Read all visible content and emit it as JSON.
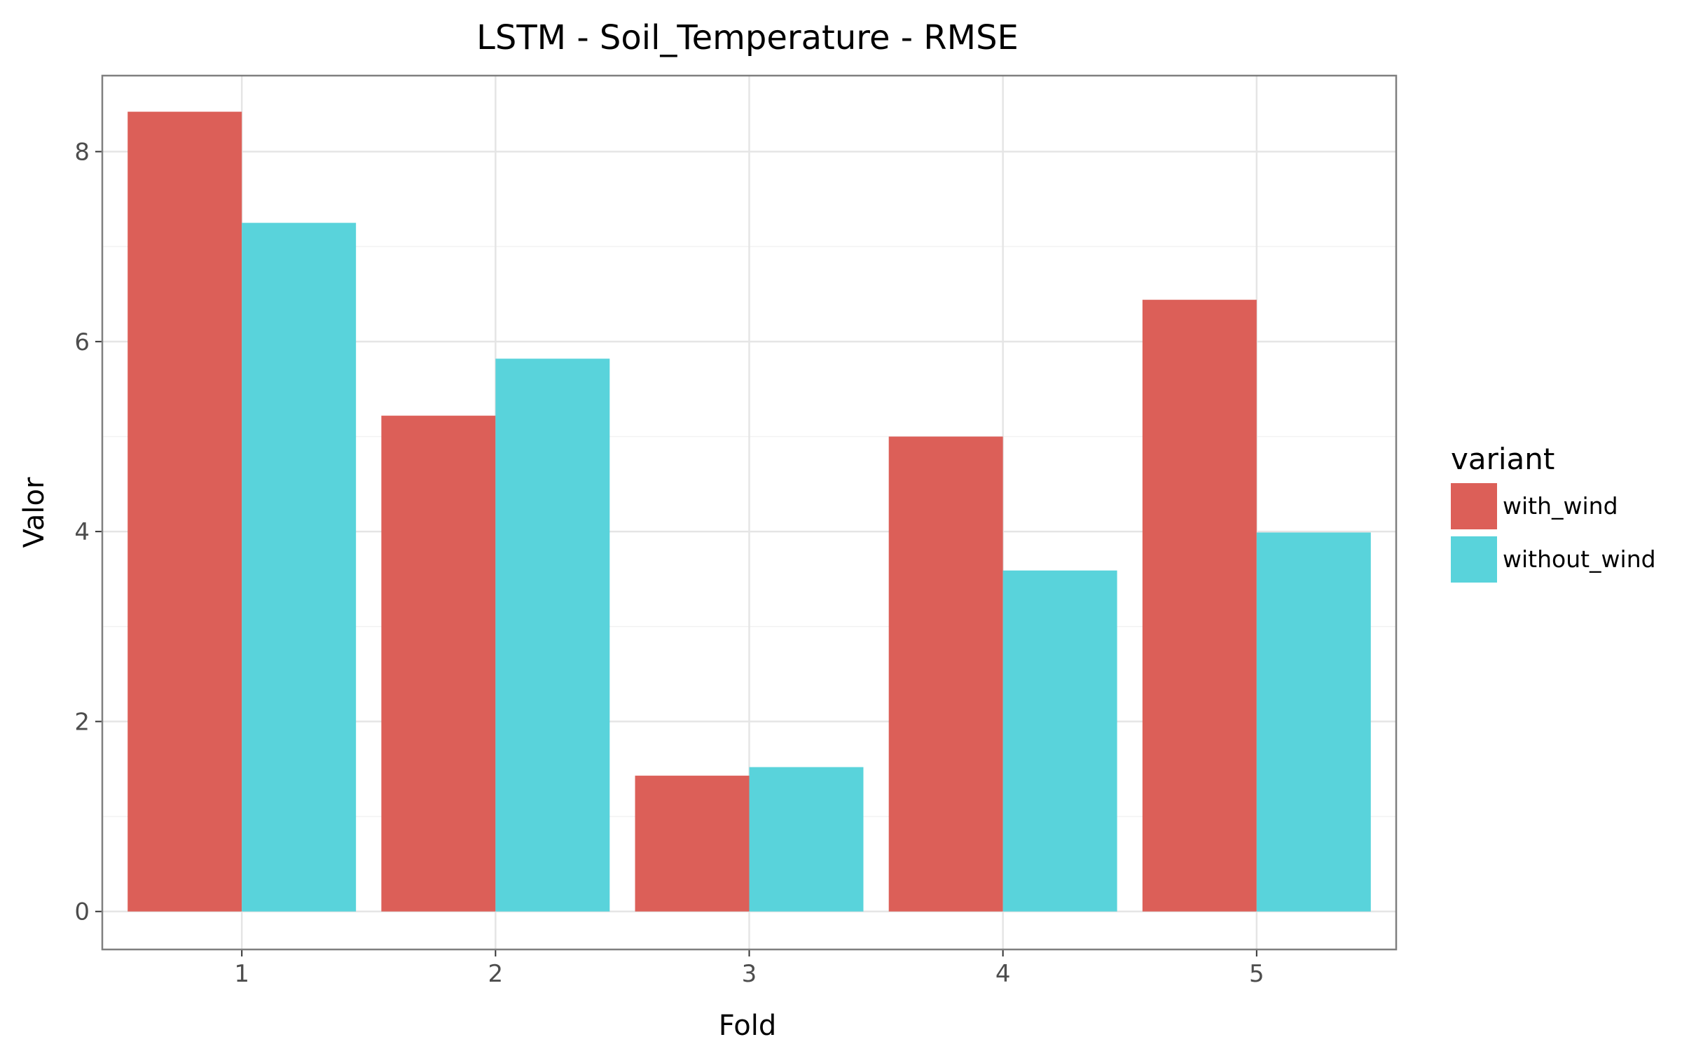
{
  "chart_data": {
    "type": "bar",
    "title": "LSTM - Soil_Temperature - RMSE",
    "xlabel": "Fold",
    "ylabel": "Valor",
    "categories": [
      "1",
      "2",
      "3",
      "4",
      "5"
    ],
    "series": [
      {
        "name": "with_wind",
        "color": "#dc5f58",
        "values": [
          8.42,
          5.22,
          1.43,
          5.0,
          6.44
        ]
      },
      {
        "name": "without_wind",
        "color": "#59d3db",
        "values": [
          7.25,
          5.82,
          1.52,
          3.59,
          3.99
        ]
      }
    ],
    "ylim": [
      -0.4,
      8.8
    ],
    "yticks": [
      0,
      2,
      4,
      6,
      8
    ],
    "grid": true,
    "legend": {
      "title": "variant",
      "position": "right"
    }
  }
}
